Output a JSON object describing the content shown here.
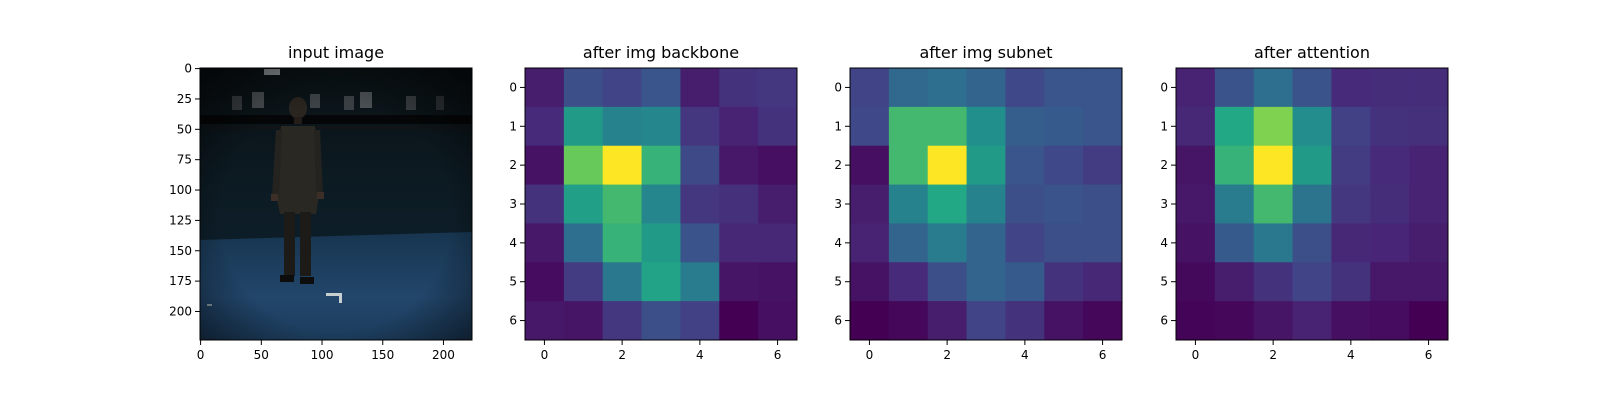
{
  "chart_data": [
    {
      "type": "image",
      "title": "input image",
      "image_description": "person standing in dark motion capture studio, dark teal curtain background, blue floor",
      "x_ticks": [
        "0",
        "50",
        "100",
        "150",
        "200"
      ],
      "y_ticks": [
        "0",
        "25",
        "50",
        "75",
        "100",
        "125",
        "150",
        "175",
        "200"
      ],
      "xlim": [
        -0.5,
        223.5
      ],
      "ylim": [
        223.5,
        -0.5
      ]
    },
    {
      "type": "heatmap",
      "title": "after img backbone",
      "colormap": "viridis",
      "x_ticks": [
        "0",
        "2",
        "4",
        "6"
      ],
      "y_ticks": [
        "0",
        "1",
        "2",
        "3",
        "4",
        "5",
        "6"
      ],
      "values": [
        [
          0.1,
          0.3,
          0.25,
          0.33,
          0.1,
          0.18,
          0.2
        ],
        [
          0.15,
          0.68,
          0.55,
          0.57,
          0.2,
          0.12,
          0.18
        ],
        [
          0.06,
          0.85,
          1.0,
          0.78,
          0.28,
          0.08,
          0.05
        ],
        [
          0.18,
          0.7,
          0.8,
          0.57,
          0.2,
          0.17,
          0.1
        ],
        [
          0.08,
          0.45,
          0.78,
          0.68,
          0.32,
          0.14,
          0.14
        ],
        [
          0.04,
          0.22,
          0.5,
          0.72,
          0.52,
          0.07,
          0.06
        ],
        [
          0.08,
          0.07,
          0.2,
          0.3,
          0.24,
          0.0,
          0.05
        ]
      ]
    },
    {
      "type": "heatmap",
      "title": "after img subnet",
      "colormap": "viridis",
      "x_ticks": [
        "0",
        "2",
        "4",
        "6"
      ],
      "y_ticks": [
        "0",
        "1",
        "2",
        "3",
        "4",
        "5",
        "6"
      ],
      "values": [
        [
          0.25,
          0.42,
          0.45,
          0.4,
          0.27,
          0.33,
          0.33
        ],
        [
          0.27,
          0.8,
          0.8,
          0.62,
          0.37,
          0.35,
          0.33
        ],
        [
          0.05,
          0.8,
          1.0,
          0.68,
          0.33,
          0.27,
          0.22
        ],
        [
          0.1,
          0.55,
          0.75,
          0.55,
          0.3,
          0.32,
          0.3
        ],
        [
          0.12,
          0.4,
          0.52,
          0.4,
          0.25,
          0.3,
          0.3
        ],
        [
          0.06,
          0.15,
          0.3,
          0.4,
          0.35,
          0.18,
          0.14
        ],
        [
          0.0,
          0.02,
          0.1,
          0.25,
          0.18,
          0.06,
          0.02
        ]
      ]
    },
    {
      "type": "heatmap",
      "title": "after attention",
      "colormap": "viridis",
      "x_ticks": [
        "0",
        "2",
        "4",
        "6"
      ],
      "y_ticks": [
        "0",
        "1",
        "2",
        "3",
        "4",
        "5",
        "6"
      ],
      "values": [
        [
          0.12,
          0.32,
          0.45,
          0.32,
          0.15,
          0.16,
          0.16
        ],
        [
          0.14,
          0.75,
          0.88,
          0.6,
          0.24,
          0.18,
          0.17
        ],
        [
          0.07,
          0.78,
          1.0,
          0.68,
          0.22,
          0.15,
          0.12
        ],
        [
          0.08,
          0.52,
          0.8,
          0.48,
          0.2,
          0.16,
          0.12
        ],
        [
          0.06,
          0.35,
          0.5,
          0.3,
          0.14,
          0.13,
          0.1
        ],
        [
          0.03,
          0.1,
          0.18,
          0.25,
          0.18,
          0.08,
          0.08
        ],
        [
          0.01,
          0.02,
          0.07,
          0.12,
          0.05,
          0.04,
          0.0
        ]
      ]
    }
  ]
}
